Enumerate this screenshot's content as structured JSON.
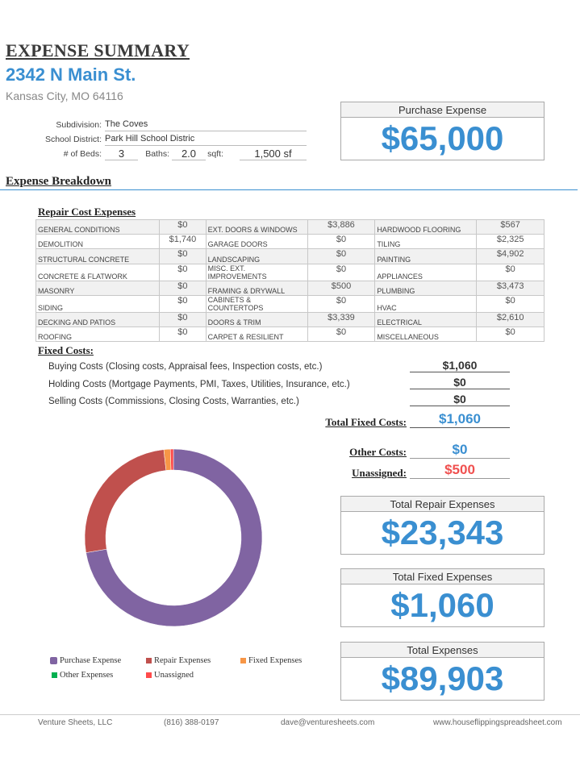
{
  "header": {
    "title": "EXPENSE SUMMARY",
    "address": "2342 N Main St.",
    "city": "Kansas City, MO 64116"
  },
  "property": {
    "subdivision_label": "Subdivision:",
    "subdivision": "The Coves",
    "school_label": "School District:",
    "school": "Park Hill School Distric",
    "beds_label": "# of Beds:",
    "beds": "3",
    "baths_label": "Baths:",
    "baths": "2.0",
    "sqft_label": "sqft:",
    "sqft": "1,500 sf"
  },
  "purchase": {
    "label": "Purchase Expense",
    "value": "$65,000"
  },
  "breakdown_title": "Expense Breakdown",
  "repair": {
    "title": "Repair Cost Expenses",
    "rows": [
      [
        "GENERAL CONDITIONS",
        "$0",
        "EXT. DOORS & WINDOWS",
        "$3,886",
        "HARDWOOD FLOORING",
        "$567"
      ],
      [
        "DEMOLITION",
        "$1,740",
        "GARAGE DOORS",
        "$0",
        "TILING",
        "$2,325"
      ],
      [
        "STRUCTURAL CONCRETE",
        "$0",
        "LANDSCAPING",
        "$0",
        "PAINTING",
        "$4,902"
      ],
      [
        "CONCRETE & FLATWORK",
        "$0",
        "MISC. EXT. IMPROVEMENTS",
        "$0",
        "APPLIANCES",
        "$0"
      ],
      [
        "MASONRY",
        "$0",
        "FRAMING & DRYWALL",
        "$500",
        "PLUMBING",
        "$3,473"
      ],
      [
        "SIDING",
        "$0",
        "CABINETS & COUNTERTOPS",
        "$0",
        "HVAC",
        "$0"
      ],
      [
        "DECKING AND PATIOS",
        "$0",
        "DOORS & TRIM",
        "$3,339",
        "ELECTRICAL",
        "$2,610"
      ],
      [
        "ROOFING",
        "$0",
        "CARPET & RESILIENT",
        "$0",
        "MISCELLANEOUS",
        "$0"
      ]
    ]
  },
  "fixed": {
    "title": "Fixed Costs:",
    "items": [
      {
        "label": "Buying Costs (Closing costs, Appraisal fees, Inspection costs, etc.)",
        "value": "$1,060"
      },
      {
        "label": "Holding Costs (Mortgage Payments, PMI, Taxes, Utilities, Insurance, etc.)",
        "value": "$0"
      },
      {
        "label": "Selling Costs (Commissions, Closing Costs, Warranties, etc.)",
        "value": "$0"
      }
    ],
    "total_label": "Total Fixed Costs:",
    "total": "$1,060"
  },
  "other": {
    "label": "Other Costs:",
    "value": "$0",
    "color": "#3a8fd1"
  },
  "unassigned": {
    "label": "Unassigned:",
    "value": "$500",
    "color": "#f0504f"
  },
  "totals": [
    {
      "label": "Total Repair Expenses",
      "value": "$23,343"
    },
    {
      "label": "Total Fixed Expenses",
      "value": "$1,060"
    },
    {
      "label": "Total Expenses",
      "value": "$89,903"
    }
  ],
  "chart_data": {
    "type": "pie",
    "donut": true,
    "start": "top",
    "direction": "clockwise",
    "legend_position": "bottom",
    "series": [
      {
        "name": "Purchase Expense",
        "value": 65000,
        "color": "#8064a2"
      },
      {
        "name": "Repair Expenses",
        "value": 23343,
        "color": "#c0504d"
      },
      {
        "name": "Fixed Expenses",
        "value": 1060,
        "color": "#f79646"
      },
      {
        "name": "Other Expenses",
        "value": 0,
        "color": "#00b050"
      },
      {
        "name": "Unassigned",
        "value": 500,
        "color": "#ff4b4b"
      }
    ]
  },
  "footer": {
    "company": "Venture Sheets, LLC",
    "phone": "(816) 388-0197",
    "email": "dave@venturesheets.com",
    "website": "www.houseflippingspreadsheet.com"
  }
}
